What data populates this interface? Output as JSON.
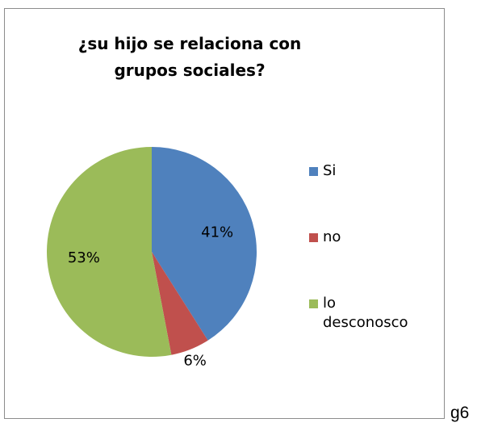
{
  "chart_data": {
    "type": "pie",
    "title": "¿su hijo se relaciona con grupos sociales?",
    "categories": [
      "Si",
      "no",
      "lo desconosco"
    ],
    "values": [
      41,
      6,
      53
    ],
    "value_labels": [
      "41%",
      "6%",
      "53%"
    ],
    "colors": [
      "#4f81bd",
      "#c0504d",
      "#9bbb59"
    ],
    "legend": "right"
  },
  "caption": "g6"
}
